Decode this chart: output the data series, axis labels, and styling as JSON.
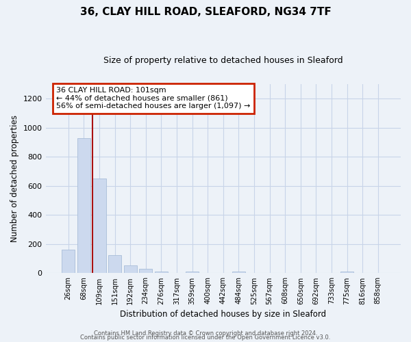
{
  "title": "36, CLAY HILL ROAD, SLEAFORD, NG34 7TF",
  "subtitle": "Size of property relative to detached houses in Sleaford",
  "xlabel": "Distribution of detached houses by size in Sleaford",
  "ylabel": "Number of detached properties",
  "bar_labels": [
    "26sqm",
    "68sqm",
    "109sqm",
    "151sqm",
    "192sqm",
    "234sqm",
    "276sqm",
    "317sqm",
    "359sqm",
    "400sqm",
    "442sqm",
    "484sqm",
    "525sqm",
    "567sqm",
    "608sqm",
    "650sqm",
    "692sqm",
    "733sqm",
    "775sqm",
    "816sqm",
    "858sqm"
  ],
  "bar_values": [
    160,
    930,
    650,
    125,
    55,
    28,
    12,
    0,
    12,
    0,
    0,
    12,
    0,
    0,
    0,
    0,
    0,
    0,
    12,
    0,
    0
  ],
  "bar_color": "#ccd9ee",
  "bar_edge_color": "#a8bdd8",
  "red_line_index": 2,
  "annotation_text": "36 CLAY HILL ROAD: 101sqm\n← 44% of detached houses are smaller (861)\n56% of semi-detached houses are larger (1,097) →",
  "annotation_box_color": "#ffffff",
  "annotation_box_edge_color": "#cc2200",
  "ylim": [
    0,
    1300
  ],
  "yticks": [
    0,
    200,
    400,
    600,
    800,
    1000,
    1200
  ],
  "grid_color": "#c8d4e8",
  "bg_color": "#edf2f8",
  "footer_line1": "Contains HM Land Registry data © Crown copyright and database right 2024.",
  "footer_line2": "Contains public sector information licensed under the Open Government Licence v3.0."
}
